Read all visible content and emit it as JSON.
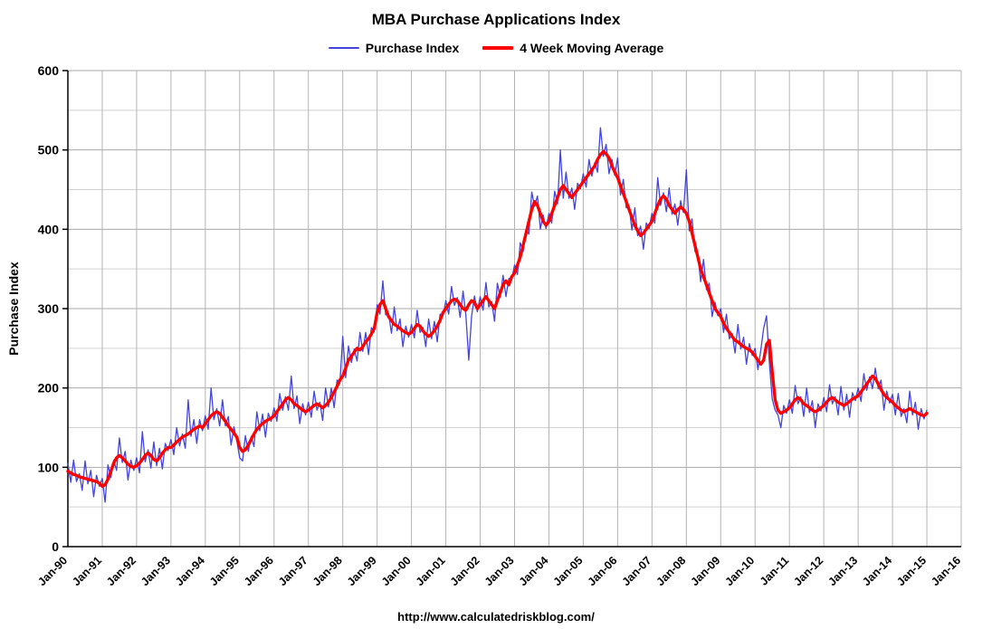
{
  "title": "MBA Purchase Applications Index",
  "footer": "http://www.calculatedriskblog.com/",
  "legend": [
    {
      "label": "Purchase Index",
      "color": "#4444dd",
      "thickness": 2
    },
    {
      "label": "4 Week Moving Average",
      "color": "#ff0000",
      "thickness": 4
    }
  ],
  "chart_data": {
    "type": "line",
    "title": "MBA Purchase Applications Index",
    "xlabel": "",
    "ylabel": "Purchase Index",
    "ylim": [
      0,
      600
    ],
    "y_label_step": 100,
    "y_grid_step": 50,
    "grid": true,
    "legend_position": "top",
    "x_start_year": 1990,
    "x_end_year": 2016,
    "points_per_year": 12,
    "x_tick_labels": [
      "Jan-90",
      "Jan-91",
      "Jan-92",
      "Jan-93",
      "Jan-94",
      "Jan-95",
      "Jan-96",
      "Jan-97",
      "Jan-98",
      "Jan-99",
      "Jan-00",
      "Jan-01",
      "Jan-02",
      "Jan-03",
      "Jan-04",
      "Jan-05",
      "Jan-06",
      "Jan-07",
      "Jan-08",
      "Jan-09",
      "Jan-10",
      "Jan-11",
      "Jan-12",
      "Jan-13",
      "Jan-14",
      "Jan-15",
      "Jan-16"
    ],
    "series": [
      {
        "name": "Purchase Index",
        "color": "#4444dd",
        "stroke_width": 1.3,
        "values": [
          105,
          81,
          109,
          82,
          92,
          71,
          108,
          79,
          96,
          63,
          90,
          76,
          86,
          56,
          103,
          87,
          109,
          96,
          137,
          106,
          120,
          84,
          109,
          96,
          112,
          93,
          145,
          107,
          122,
          99,
          132,
          102,
          124,
          98,
          130,
          121,
          135,
          116,
          150,
          127,
          142,
          124,
          185,
          139,
          160,
          130,
          160,
          146,
          165,
          148,
          200,
          160,
          174,
          152,
          185,
          152,
          164,
          128,
          151,
          134,
          112,
          108,
          140,
          120,
          139,
          126,
          170,
          146,
          167,
          138,
          168,
          158,
          175,
          158,
          193,
          172,
          189,
          172,
          215,
          174,
          190,
          155,
          180,
          166,
          182,
          163,
          196,
          172,
          182,
          159,
          200,
          176,
          200,
          175,
          210,
          206,
          265,
          213,
          253,
          232,
          249,
          234,
          270,
          246,
          270,
          242,
          276,
          271,
          305,
          293,
          335,
          292,
          294,
          269,
          302,
          272,
          287,
          252,
          278,
          264,
          280,
          263,
          298,
          270,
          276,
          252,
          287,
          262,
          284,
          258,
          293,
          291,
          310,
          293,
          328,
          304,
          314,
          289,
          322,
          292,
          235,
          290,
          316,
          296,
          315,
          298,
          333,
          302,
          309,
          284,
          332,
          314,
          342,
          315,
          338,
          336,
          355,
          343,
          383,
          372,
          399,
          394,
          447,
          429,
          442,
          400,
          418,
          401,
          420,
          408,
          448,
          432,
          500,
          439,
          472,
          439,
          452,
          425,
          458,
          451,
          470,
          453,
          488,
          467,
          484,
          472,
          528,
          492,
          507,
          470,
          488,
          468,
          490,
          443,
          463,
          427,
          429,
          399,
          427,
          392,
          404,
          375,
          408,
          401,
          420,
          408,
          465,
          430,
          446,
          422,
          452,
          419,
          432,
          405,
          436,
          421,
          475,
          398,
          413,
          372,
          369,
          334,
          362,
          324,
          332,
          290,
          308,
          291,
          300,
          270,
          293,
          262,
          269,
          244,
          280,
          249,
          264,
          230,
          256,
          241,
          250,
          223,
          248,
          275,
          291,
          232,
          186,
          172,
          166,
          150,
          178,
          168,
          185,
          168,
          203,
          180,
          189,
          164,
          200,
          169,
          184,
          150,
          180,
          171,
          188,
          170,
          204,
          180,
          189,
          166,
          202,
          172,
          192,
          163,
          194,
          184,
          200,
          183,
          218,
          197,
          214,
          199,
          225,
          199,
          210,
          172,
          196,
          181,
          192,
          166,
          193,
          164,
          174,
          156,
          196,
          166,
          182,
          148,
          174,
          161,
          172
        ]
      },
      {
        "name": "4 Week Moving Average",
        "color": "#ff0000",
        "stroke_width": 3.4,
        "values": [
          95,
          93,
          91,
          90,
          88,
          87,
          86,
          85,
          84,
          83,
          82,
          80,
          76,
          78,
          85,
          95,
          105,
          112,
          115,
          112,
          108,
          104,
          101,
          100,
          102,
          105,
          110,
          115,
          118,
          115,
          110,
          108,
          112,
          118,
          122,
          125,
          125,
          128,
          132,
          135,
          138,
          140,
          142,
          145,
          148,
          150,
          152,
          150,
          155,
          160,
          165,
          168,
          170,
          168,
          163,
          158,
          152,
          148,
          143,
          138,
          125,
          120,
          122,
          128,
          135,
          142,
          148,
          152,
          155,
          158,
          160,
          162,
          165,
          170,
          175,
          180,
          185,
          188,
          185,
          180,
          178,
          175,
          172,
          170,
          172,
          175,
          178,
          180,
          178,
          175,
          178,
          182,
          188,
          195,
          202,
          210,
          215,
          225,
          235,
          240,
          245,
          250,
          248,
          252,
          258,
          262,
          268,
          275,
          295,
          305,
          310,
          300,
          290,
          285,
          280,
          278,
          275,
          272,
          270,
          268,
          270,
          275,
          280,
          278,
          272,
          268,
          265,
          268,
          272,
          278,
          285,
          295,
          300,
          305,
          310,
          312,
          310,
          305,
          300,
          298,
          305,
          310,
          308,
          300,
          305,
          310,
          315,
          310,
          305,
          300,
          310,
          320,
          330,
          335,
          330,
          340,
          345,
          355,
          365,
          380,
          395,
          410,
          425,
          435,
          430,
          420,
          410,
          405,
          410,
          420,
          430,
          440,
          450,
          455,
          450,
          445,
          440,
          445,
          450,
          455,
          460,
          465,
          470,
          475,
          480,
          488,
          494,
          498,
          495,
          490,
          480,
          472,
          465,
          455,
          445,
          435,
          425,
          415,
          405,
          398,
          392,
          395,
          400,
          405,
          410,
          420,
          430,
          438,
          442,
          438,
          430,
          425,
          420,
          425,
          428,
          425,
          420,
          410,
          395,
          380,
          365,
          350,
          340,
          330,
          320,
          310,
          300,
          295,
          290,
          282,
          275,
          270,
          265,
          260,
          258,
          255,
          252,
          250,
          248,
          245,
          240,
          235,
          230,
          235,
          255,
          260,
          220,
          185,
          172,
          168,
          170,
          172,
          175,
          180,
          185,
          188,
          185,
          180,
          178,
          175,
          172,
          170,
          172,
          175,
          178,
          182,
          186,
          188,
          185,
          182,
          180,
          178,
          180,
          183,
          186,
          188,
          190,
          195,
          200,
          205,
          210,
          215,
          212,
          205,
          198,
          192,
          188,
          185,
          182,
          178,
          175,
          172,
          170,
          172,
          174,
          172,
          170,
          168,
          166,
          165,
          168
        ]
      }
    ]
  }
}
